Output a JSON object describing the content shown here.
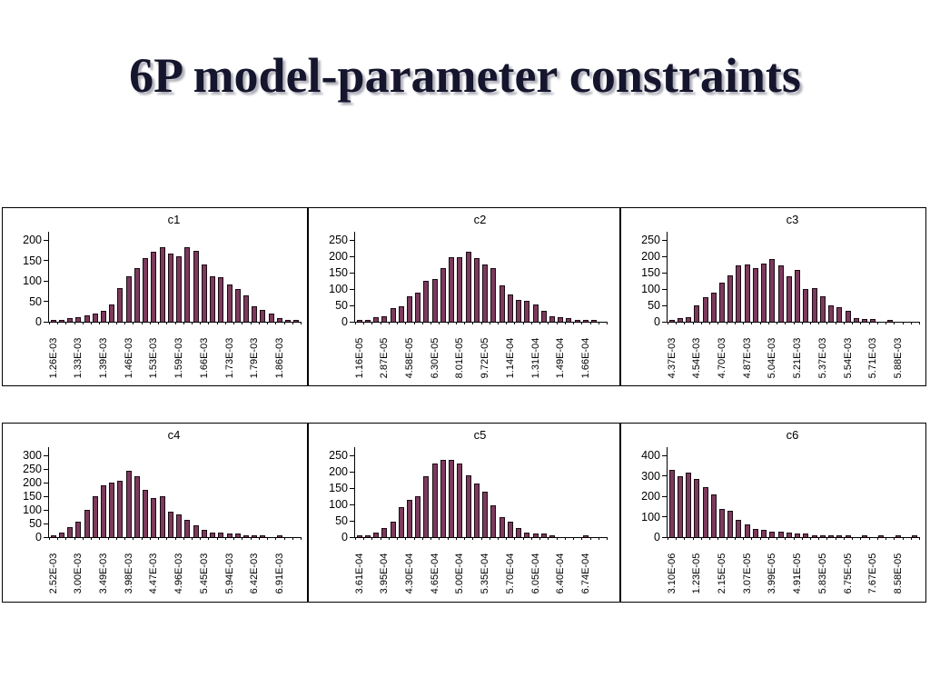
{
  "slide": {
    "title": "6P model-parameter constraints"
  },
  "chart_data": [
    {
      "type": "bar",
      "title": "c1",
      "ylim": [
        0,
        200
      ],
      "y_ticks": [
        0,
        50,
        100,
        150,
        200
      ],
      "x_tick_labels": [
        "1.26E-03",
        "1.33E-03",
        "1.39E-03",
        "1.46E-03",
        "1.53E-03",
        "1.59E-03",
        "1.66E-03",
        "1.73E-03",
        "1.79E-03",
        "1.86E-03"
      ],
      "label_every_n_bars": 3,
      "bar_color": "#7c3a5c",
      "values": [
        3,
        5,
        9,
        11,
        15,
        19,
        27,
        42,
        82,
        112,
        131,
        155,
        172,
        182,
        166,
        159,
        182,
        173,
        141,
        111,
        108,
        91,
        79,
        64,
        38,
        29,
        20,
        9,
        5,
        3
      ]
    },
    {
      "type": "bar",
      "title": "c2",
      "ylim": [
        0,
        250
      ],
      "y_ticks": [
        0,
        50,
        100,
        150,
        200,
        250
      ],
      "x_tick_labels": [
        "1.16E-05",
        "2.87E-05",
        "4.58E-05",
        "6.30E-05",
        "8.01E-05",
        "9.72E-05",
        "1.14E-04",
        "1.31E-04",
        "1.49E-04",
        "1.66E-04"
      ],
      "label_every_n_bars": 3,
      "bar_color": "#7c3a5c",
      "values": [
        3,
        3,
        13,
        17,
        42,
        46,
        77,
        90,
        125,
        130,
        163,
        196,
        196,
        214,
        194,
        176,
        164,
        111,
        83,
        68,
        64,
        53,
        32,
        18,
        14,
        10,
        4,
        3,
        2,
        0
      ]
    },
    {
      "type": "bar",
      "title": "c3",
      "ylim": [
        0,
        250
      ],
      "y_ticks": [
        0,
        50,
        100,
        150,
        200,
        250
      ],
      "x_tick_labels": [
        "4.37E-03",
        "4.54E-03",
        "4.70E-03",
        "4.87E-03",
        "5.04E-03",
        "5.21E-03",
        "5.37E-03",
        "5.54E-03",
        "5.71E-03",
        "5.88E-03"
      ],
      "label_every_n_bars": 3,
      "bar_color": "#7c3a5c",
      "values": [
        3,
        10,
        13,
        50,
        75,
        90,
        120,
        143,
        172,
        175,
        165,
        178,
        192,
        172,
        140,
        157,
        100,
        104,
        78,
        50,
        44,
        32,
        11,
        7,
        8,
        0,
        3,
        0,
        0,
        0
      ]
    },
    {
      "type": "bar",
      "title": "c4",
      "ylim": [
        0,
        300
      ],
      "y_ticks": [
        0,
        50,
        100,
        150,
        200,
        250,
        300
      ],
      "x_tick_labels": [
        "2.52E-03",
        "3.00E-03",
        "3.49E-03",
        "3.98E-03",
        "4.47E-03",
        "4.96E-03",
        "5.45E-03",
        "5.94E-03",
        "6.42E-03",
        "6.91E-03"
      ],
      "label_every_n_bars": 3,
      "bar_color": "#7c3a5c",
      "values": [
        7,
        17,
        37,
        58,
        100,
        150,
        190,
        200,
        207,
        245,
        222,
        175,
        145,
        150,
        95,
        85,
        62,
        45,
        28,
        16,
        16,
        12,
        12,
        4,
        4,
        4,
        0,
        2,
        0,
        0
      ]
    },
    {
      "type": "bar",
      "title": "c5",
      "ylim": [
        0,
        250
      ],
      "y_ticks": [
        0,
        50,
        100,
        150,
        200,
        250
      ],
      "x_tick_labels": [
        "3.61E-04",
        "3.95E-04",
        "4.30E-04",
        "4.65E-04",
        "5.00E-04",
        "5.35E-04",
        "5.70E-04",
        "6.05E-04",
        "6.40E-04",
        "6.74E-04"
      ],
      "label_every_n_bars": 3,
      "bar_color": "#7c3a5c",
      "values": [
        3,
        3,
        14,
        29,
        46,
        92,
        114,
        125,
        185,
        224,
        235,
        235,
        224,
        189,
        164,
        139,
        96,
        60,
        46,
        29,
        14,
        10,
        10,
        3,
        0,
        0,
        0,
        3,
        0,
        0
      ]
    },
    {
      "type": "bar",
      "title": "c6",
      "ylim": [
        0,
        400
      ],
      "y_ticks": [
        0,
        100,
        200,
        300,
        400
      ],
      "x_tick_labels": [
        "3.10E-06",
        "1.23E-05",
        "2.15E-05",
        "3.07E-05",
        "3.99E-05",
        "4.91E-05",
        "5.83E-05",
        "6.75E-05",
        "7.67E-05",
        "8.58E-05"
      ],
      "label_every_n_bars": 3,
      "bar_color": "#7c3a5c",
      "values": [
        328,
        299,
        317,
        283,
        245,
        207,
        140,
        128,
        84,
        64,
        42,
        36,
        26,
        25,
        24,
        19,
        16,
        9,
        8,
        8,
        7,
        7,
        0,
        5,
        0,
        5,
        0,
        4,
        0,
        4
      ]
    }
  ]
}
